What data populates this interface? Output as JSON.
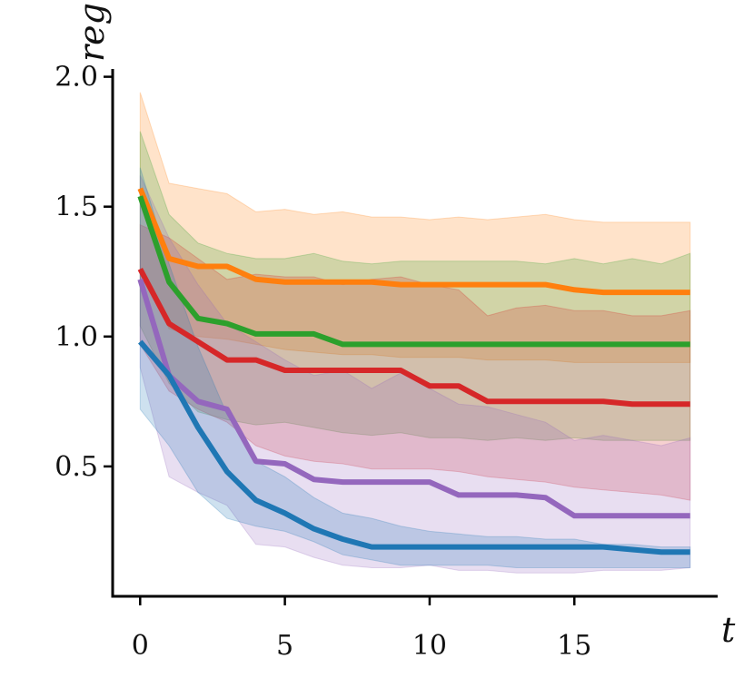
{
  "chart_data": {
    "type": "line",
    "title": "",
    "xlabel": "t",
    "ylabel": "reg",
    "xlim": [
      -0.95,
      19.95
    ],
    "ylim": [
      0.0,
      2.03
    ],
    "xticks": [
      0,
      5,
      10,
      15
    ],
    "xtick_labels": [
      "0",
      "5",
      "10",
      "15"
    ],
    "yticks": [
      0.5,
      1.0,
      1.5,
      2.0
    ],
    "ytick_labels": [
      "0.5",
      "1.0",
      "1.5",
      "2.0"
    ],
    "grid": false,
    "legend": "none",
    "x": [
      0,
      1,
      2,
      3,
      4,
      5,
      6,
      7,
      8,
      9,
      10,
      11,
      12,
      13,
      14,
      15,
      16,
      17,
      18,
      19
    ],
    "series": [
      {
        "name": "orange",
        "color": "#ff7f0e",
        "values": [
          1.57,
          1.3,
          1.27,
          1.27,
          1.22,
          1.21,
          1.21,
          1.21,
          1.21,
          1.2,
          1.2,
          1.2,
          1.2,
          1.2,
          1.2,
          1.18,
          1.17,
          1.17,
          1.17,
          1.17
        ],
        "upper": [
          1.94,
          1.59,
          1.57,
          1.55,
          1.48,
          1.49,
          1.47,
          1.48,
          1.46,
          1.46,
          1.45,
          1.46,
          1.45,
          1.46,
          1.47,
          1.45,
          1.44,
          1.44,
          1.44,
          1.44
        ],
        "lower": [
          1.25,
          1.03,
          1.0,
          0.99,
          0.97,
          0.95,
          0.94,
          0.93,
          0.93,
          0.92,
          0.92,
          0.92,
          0.91,
          0.91,
          0.91,
          0.9,
          0.9,
          0.9,
          0.9,
          0.9
        ]
      },
      {
        "name": "green",
        "color": "#2ca02c",
        "values": [
          1.54,
          1.21,
          1.07,
          1.05,
          1.01,
          1.01,
          1.01,
          0.97,
          0.97,
          0.97,
          0.97,
          0.97,
          0.97,
          0.97,
          0.97,
          0.97,
          0.97,
          0.97,
          0.97,
          0.97
        ],
        "upper": [
          1.79,
          1.47,
          1.36,
          1.32,
          1.3,
          1.3,
          1.32,
          1.29,
          1.28,
          1.29,
          1.29,
          1.29,
          1.29,
          1.29,
          1.28,
          1.3,
          1.28,
          1.3,
          1.28,
          1.32
        ],
        "lower": [
          1.04,
          0.82,
          0.71,
          0.68,
          0.66,
          0.67,
          0.65,
          0.63,
          0.62,
          0.63,
          0.61,
          0.61,
          0.6,
          0.61,
          0.6,
          0.61,
          0.6,
          0.6,
          0.6,
          0.6
        ]
      },
      {
        "name": "red",
        "color": "#d62728",
        "values": [
          1.26,
          1.05,
          0.98,
          0.91,
          0.91,
          0.87,
          0.87,
          0.87,
          0.87,
          0.87,
          0.81,
          0.81,
          0.75,
          0.75,
          0.75,
          0.75,
          0.75,
          0.74,
          0.74,
          0.74
        ],
        "upper": [
          1.43,
          1.38,
          1.3,
          1.22,
          1.24,
          1.23,
          1.23,
          1.2,
          1.22,
          1.23,
          1.2,
          1.18,
          1.08,
          1.11,
          1.12,
          1.1,
          1.1,
          1.08,
          1.08,
          1.1
        ],
        "lower": [
          0.97,
          0.79,
          0.72,
          0.67,
          0.58,
          0.54,
          0.52,
          0.51,
          0.49,
          0.49,
          0.49,
          0.48,
          0.46,
          0.45,
          0.44,
          0.42,
          0.41,
          0.4,
          0.39,
          0.37
        ]
      },
      {
        "name": "purple",
        "color": "#9467bd",
        "values": [
          1.22,
          0.85,
          0.75,
          0.72,
          0.52,
          0.51,
          0.45,
          0.44,
          0.44,
          0.44,
          0.44,
          0.39,
          0.39,
          0.39,
          0.38,
          0.31,
          0.31,
          0.31,
          0.31,
          0.31
        ],
        "upper": [
          1.62,
          1.38,
          1.2,
          1.05,
          0.98,
          0.91,
          0.85,
          0.87,
          0.8,
          0.86,
          0.8,
          0.74,
          0.73,
          0.7,
          0.67,
          0.6,
          0.62,
          0.6,
          0.58,
          0.61
        ],
        "lower": [
          0.88,
          0.46,
          0.4,
          0.35,
          0.2,
          0.19,
          0.15,
          0.12,
          0.11,
          0.11,
          0.12,
          0.1,
          0.1,
          0.09,
          0.09,
          0.09,
          0.1,
          0.1,
          0.1,
          0.11
        ]
      },
      {
        "name": "blue",
        "color": "#1f77b4",
        "values": [
          0.98,
          0.85,
          0.65,
          0.48,
          0.37,
          0.32,
          0.26,
          0.22,
          0.19,
          0.19,
          0.19,
          0.19,
          0.19,
          0.19,
          0.19,
          0.19,
          0.19,
          0.18,
          0.17,
          0.17
        ],
        "upper": [
          1.65,
          1.28,
          0.96,
          0.7,
          0.52,
          0.46,
          0.38,
          0.32,
          0.3,
          0.27,
          0.25,
          0.24,
          0.23,
          0.23,
          0.22,
          0.22,
          0.2,
          0.2,
          0.19,
          0.19
        ],
        "lower": [
          0.72,
          0.58,
          0.4,
          0.3,
          0.27,
          0.25,
          0.21,
          0.16,
          0.14,
          0.12,
          0.12,
          0.12,
          0.12,
          0.11,
          0.11,
          0.11,
          0.11,
          0.11,
          0.11,
          0.11
        ]
      }
    ]
  }
}
